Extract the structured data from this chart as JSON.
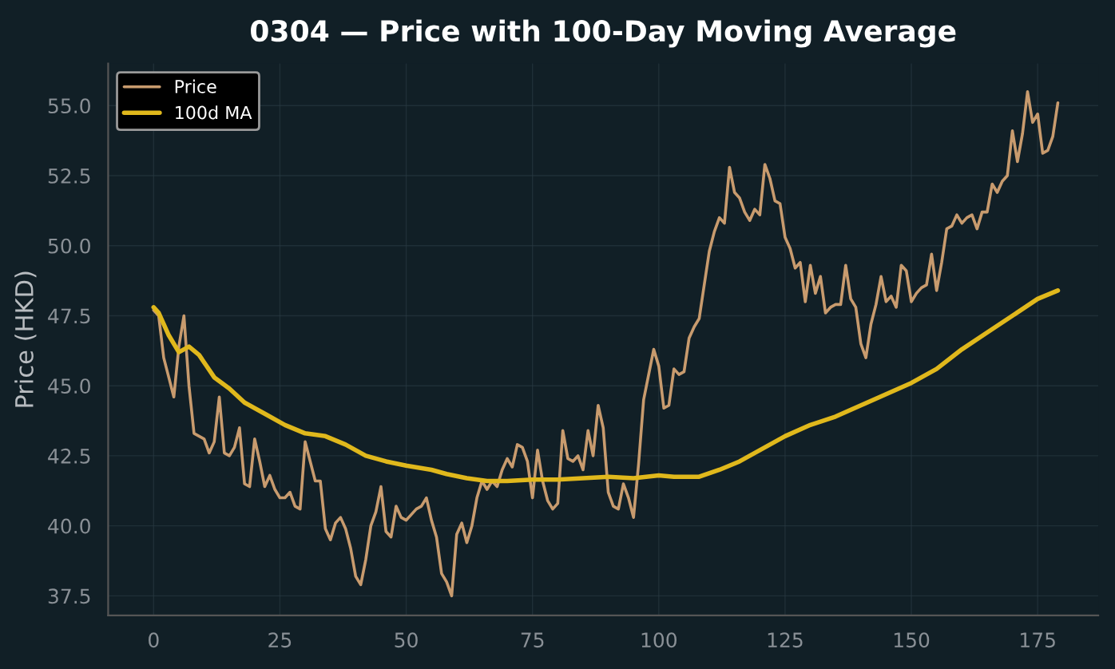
{
  "chart_data": {
    "type": "line",
    "title": "0304 — Price with 100-Day Moving Average",
    "ylabel": "Price (HKD)",
    "xlim": [
      -9,
      187
    ],
    "xticks": [
      0,
      25,
      50,
      75,
      100,
      125,
      150,
      175
    ],
    "ylim": [
      36.8,
      56.5
    ],
    "yticks": [
      37.5,
      {
        "value": 40,
        "label": "40.0"
      },
      42.5,
      {
        "value": 45,
        "label": "45.0"
      },
      47.5,
      {
        "value": 50,
        "label": "50.0"
      },
      52.5,
      {
        "value": 55,
        "label": "55.0"
      }
    ],
    "grid": true,
    "legend": "top left",
    "series": [
      {
        "name": "Price",
        "color": "#c89b6e",
        "x": [
          0,
          1,
          2,
          3,
          4,
          5,
          6,
          7,
          8,
          10,
          11,
          12,
          13,
          14,
          15,
          16,
          17,
          18,
          19,
          20,
          21,
          22,
          23,
          24,
          25,
          26,
          27,
          28,
          29,
          30,
          31,
          32,
          33,
          34,
          35,
          36,
          37,
          38,
          39,
          40,
          41,
          42,
          43,
          44,
          45,
          46,
          47,
          48,
          49,
          50,
          51,
          52,
          53,
          54,
          55,
          56,
          57,
          58,
          59,
          60,
          61,
          62,
          63,
          64,
          65,
          66,
          67,
          68,
          69,
          70,
          71,
          72,
          73,
          74,
          75,
          76,
          77,
          78,
          79,
          80,
          81,
          82,
          83,
          84,
          85,
          86,
          87,
          88,
          89,
          90,
          91,
          92,
          93,
          94,
          95,
          96,
          97,
          98,
          99,
          100,
          101,
          102,
          103,
          104,
          105,
          106,
          107,
          108,
          109,
          110,
          111,
          112,
          113,
          114,
          115,
          116,
          117,
          118,
          119,
          120,
          121,
          122,
          123,
          124,
          125,
          126,
          127,
          128,
          129,
          130,
          131,
          132,
          133,
          134,
          135,
          136,
          137,
          138,
          139,
          140,
          141,
          142,
          143,
          144,
          145,
          146,
          147,
          148,
          149,
          150,
          151,
          152,
          153,
          154,
          155,
          156,
          157,
          158,
          159,
          160,
          161,
          162,
          163,
          164,
          165,
          166,
          167,
          168,
          169,
          170,
          171,
          172,
          173,
          174,
          175,
          176,
          177,
          178,
          179
        ],
        "values": [
          47.7,
          47.5,
          46.0,
          45.3,
          44.6,
          46.4,
          47.5,
          45.0,
          43.3,
          43.1,
          42.6,
          43.0,
          44.6,
          42.6,
          42.5,
          42.8,
          43.5,
          41.5,
          41.4,
          43.1,
          42.3,
          41.4,
          41.8,
          41.3,
          41.0,
          41.0,
          41.2,
          40.7,
          40.6,
          43.0,
          42.3,
          41.6,
          41.6,
          39.9,
          39.5,
          40.1,
          40.3,
          39.9,
          39.2,
          38.2,
          37.9,
          38.8,
          40.0,
          40.5,
          41.4,
          39.8,
          39.6,
          40.7,
          40.3,
          40.2,
          40.4,
          40.6,
          40.7,
          41.0,
          40.2,
          39.6,
          38.3,
          38.0,
          37.5,
          39.7,
          40.1,
          39.4,
          40.0,
          41.0,
          41.6,
          41.3,
          41.6,
          41.4,
          42.0,
          42.4,
          42.1,
          42.9,
          42.8,
          42.3,
          41.0,
          42.7,
          41.6,
          40.9,
          40.6,
          40.8,
          43.4,
          42.4,
          42.3,
          42.5,
          42.0,
          43.4,
          42.5,
          44.3,
          43.5,
          41.2,
          40.7,
          40.6,
          41.5,
          41.0,
          40.3,
          42.2,
          44.5,
          45.4,
          46.3,
          45.7,
          44.2,
          44.3,
          45.6,
          45.4,
          45.5,
          46.7,
          47.1,
          47.4,
          48.6,
          49.8,
          50.5,
          51.0,
          50.8,
          52.8,
          51.9,
          51.7,
          51.2,
          50.9,
          51.3,
          51.1,
          52.9,
          52.4,
          51.6,
          51.5,
          50.3,
          49.9,
          49.2,
          49.4,
          48.0,
          49.3,
          48.3,
          48.9,
          47.6,
          47.8,
          47.9,
          47.9,
          49.3,
          48.1,
          47.8,
          46.5,
          46.0,
          47.2,
          47.9,
          48.9,
          48.0,
          48.2,
          47.8,
          49.3,
          49.1,
          48.0,
          48.3,
          48.5,
          48.6,
          49.7,
          48.4,
          49.4,
          50.6,
          50.7,
          51.1,
          50.8,
          51.0,
          51.1,
          50.6,
          51.2,
          51.2,
          52.2,
          51.9,
          52.3,
          52.5,
          54.1,
          53.0,
          54.0,
          55.5,
          54.4,
          54.7,
          53.3,
          53.4,
          53.9,
          55.1
        ]
      },
      {
        "name": "100d MA",
        "color": "#e0b81c",
        "x": [
          0,
          1,
          3,
          5,
          7,
          9,
          12,
          15,
          18,
          22,
          26,
          30,
          34,
          38,
          42,
          46,
          50,
          55,
          58,
          62,
          66,
          70,
          75,
          80,
          85,
          90,
          95,
          100,
          103,
          108,
          112,
          116,
          120,
          125,
          130,
          135,
          140,
          145,
          150,
          155,
          160,
          165,
          170,
          175,
          179
        ],
        "values": [
          47.8,
          47.6,
          46.8,
          46.2,
          46.4,
          46.1,
          45.3,
          44.9,
          44.4,
          44.0,
          43.6,
          43.3,
          43.2,
          42.9,
          42.5,
          42.3,
          42.15,
          42.0,
          41.85,
          41.7,
          41.6,
          41.6,
          41.65,
          41.65,
          41.7,
          41.75,
          41.7,
          41.8,
          41.75,
          41.75,
          42.0,
          42.3,
          42.7,
          43.2,
          43.6,
          43.9,
          44.3,
          44.7,
          45.1,
          45.6,
          46.3,
          46.9,
          47.5,
          48.1,
          48.4
        ]
      }
    ]
  }
}
